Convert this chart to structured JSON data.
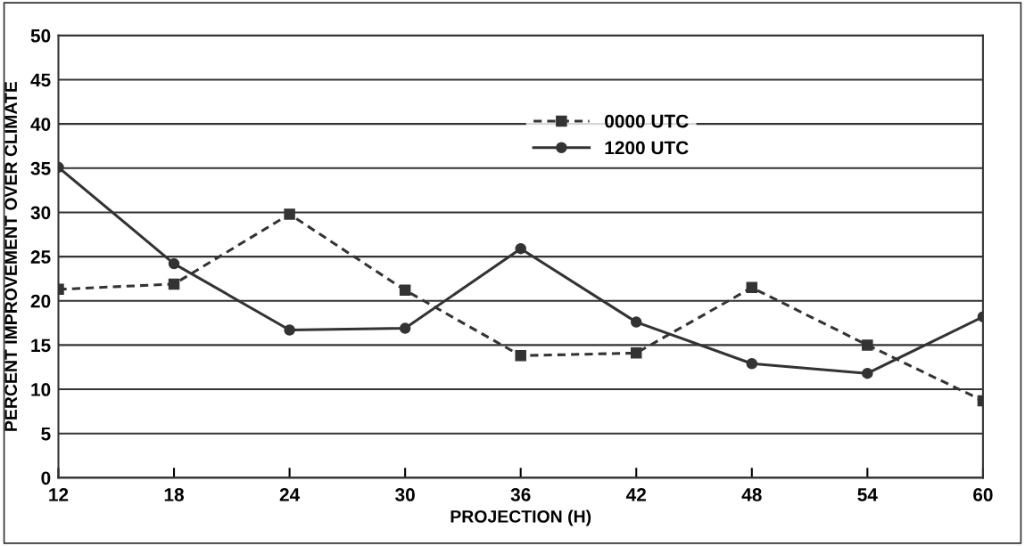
{
  "chart_data": {
    "type": "line",
    "xlabel": "PROJECTION (H)",
    "ylabel": "PERCENT IMPROVEMENT OVER CLIMATE",
    "x": [
      12,
      18,
      24,
      30,
      36,
      42,
      48,
      54,
      60
    ],
    "series": [
      {
        "name": "0000 UTC",
        "color": "#333333",
        "values": [
          21.3,
          21.9,
          29.8,
          21.2,
          13.8,
          14.1,
          21.5,
          15.0,
          8.7
        ],
        "marker": "square",
        "line_style": "dashed"
      },
      {
        "name": "1200 UTC",
        "color": "#333333",
        "values": [
          35.1,
          24.2,
          16.7,
          16.9,
          25.9,
          17.6,
          12.9,
          11.8,
          18.2
        ],
        "marker": "circle",
        "line_style": "solid"
      }
    ],
    "xlim": [
      12,
      60
    ],
    "xticks": [
      12,
      18,
      24,
      30,
      36,
      42,
      48,
      54,
      60
    ],
    "ylim": [
      0,
      50
    ],
    "yticks": [
      0,
      5,
      10,
      15,
      20,
      25,
      30,
      35,
      40,
      45,
      50
    ],
    "grid": "y",
    "legend": "top right"
  }
}
